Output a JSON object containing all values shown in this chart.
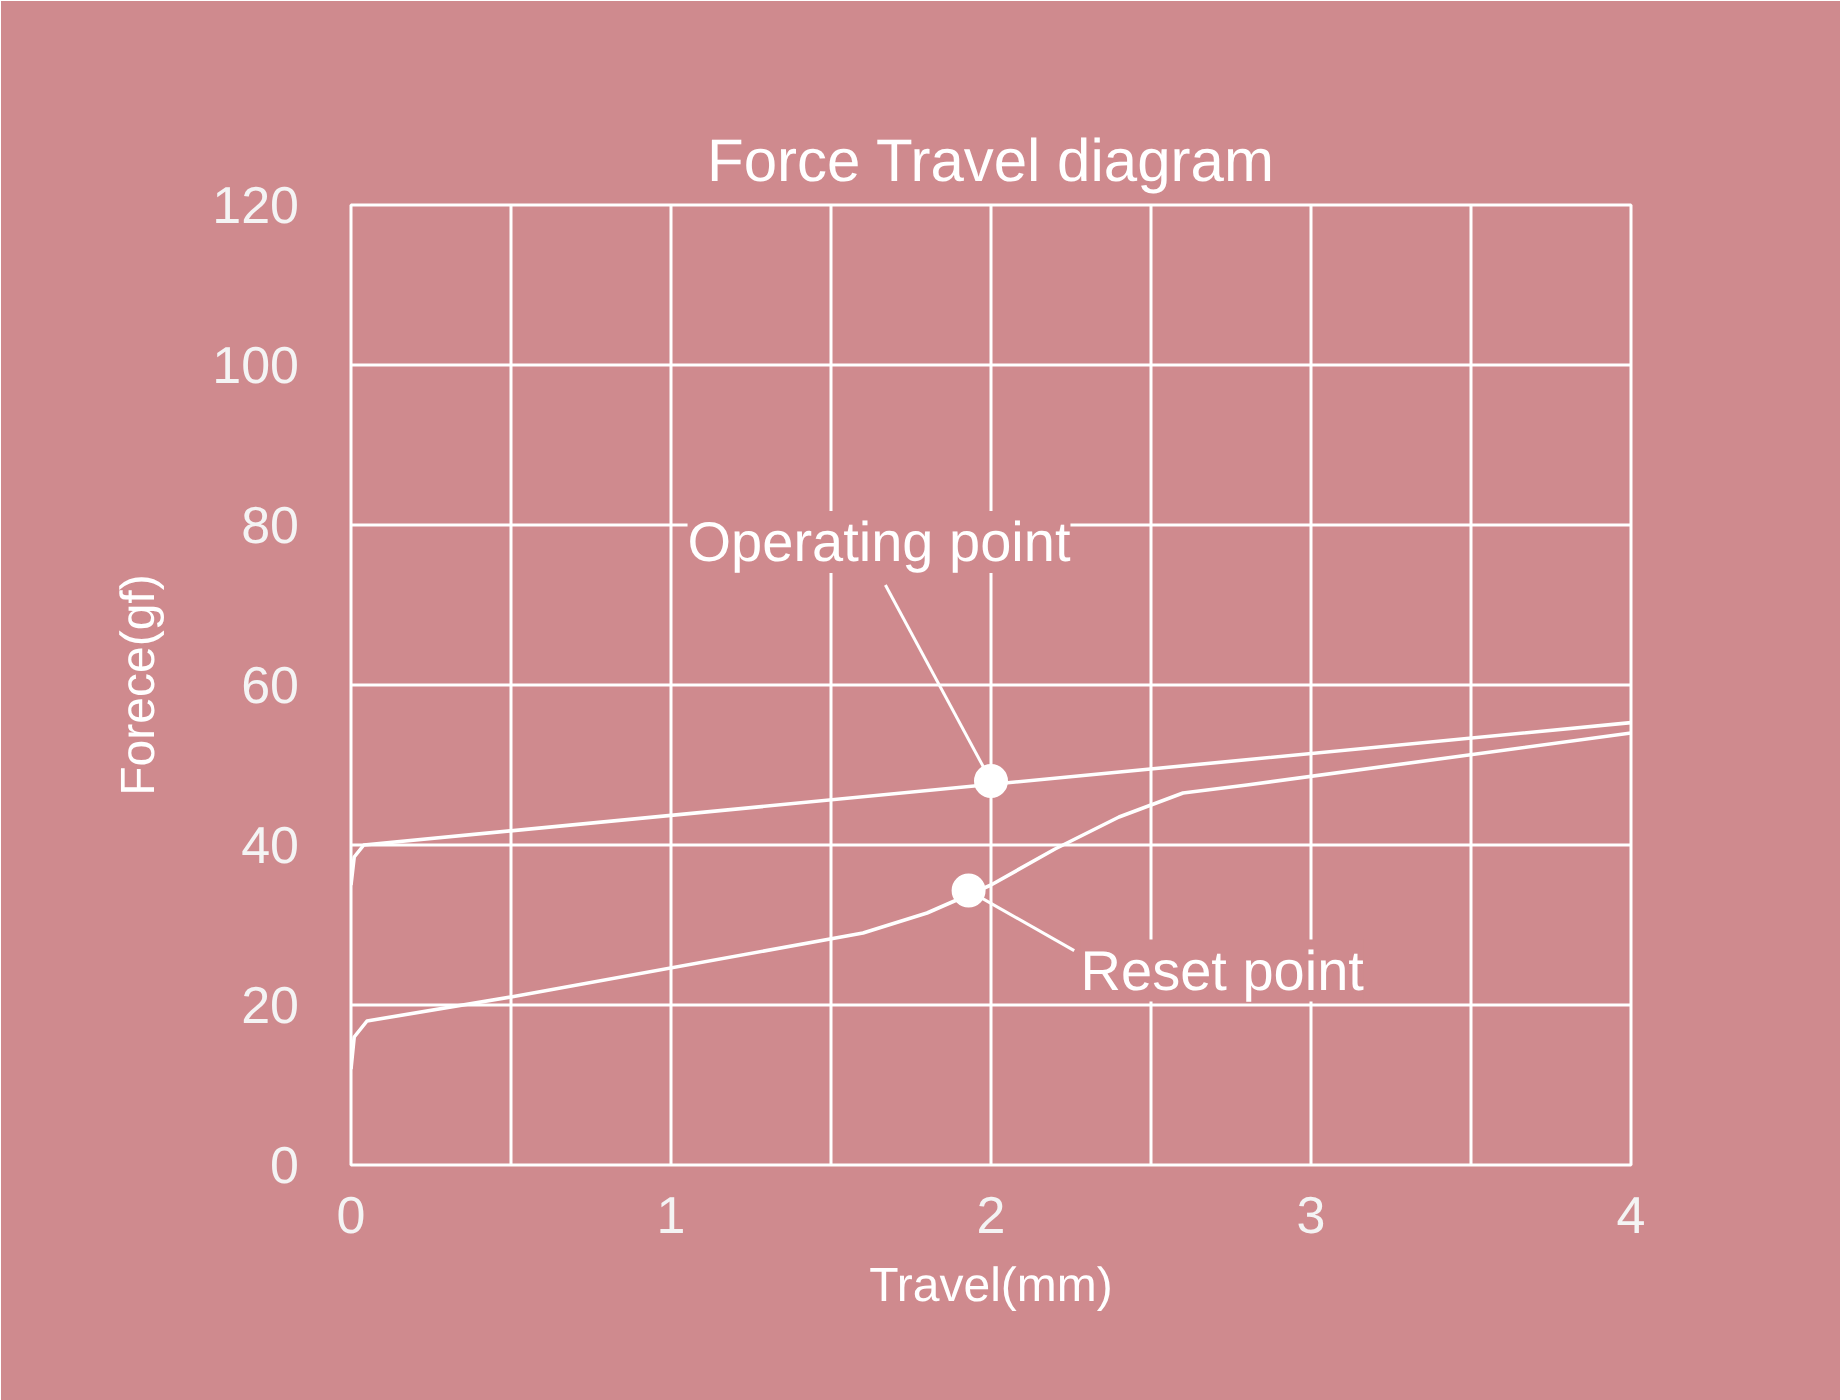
{
  "chart_data": {
    "type": "line",
    "title": "Force Travel diagram",
    "xlabel": "Travel(mm)",
    "ylabel": "Forece(gf)",
    "series": [
      {
        "color": "#ffffff",
        "x": [
          0,
          0.01,
          0.04,
          4
        ],
        "values": [
          35,
          38.5,
          40,
          55.3
        ]
      },
      {
        "color": "#ffffff",
        "x": [
          0,
          0.01,
          0.05,
          0.5,
          1.6,
          1.8,
          2,
          2.2,
          2.4,
          2.6,
          2.8,
          4
        ],
        "values": [
          12,
          16,
          18,
          21,
          29,
          31.5,
          35,
          39.5,
          43.5,
          46.5,
          47.5,
          54
        ]
      }
    ],
    "annotations": [
      {
        "text": "Operating point",
        "x": 2,
        "y": 48
      },
      {
        "text": "Reset point",
        "x": 1.93,
        "y": 34.3
      }
    ],
    "xlim": [
      0,
      4
    ],
    "ylim": [
      0,
      120
    ],
    "xticks": [
      0,
      {
        "value": 0.5,
        "label": null
      },
      1,
      {
        "value": 1.5,
        "label": null
      },
      2,
      {
        "value": 2.5,
        "label": null
      },
      3,
      {
        "value": 3.5,
        "label": null
      },
      4
    ],
    "yticks": [
      0,
      20,
      40,
      60,
      80,
      100,
      120
    ],
    "grid": true,
    "marker": "none",
    "line_style": "solid"
  }
}
